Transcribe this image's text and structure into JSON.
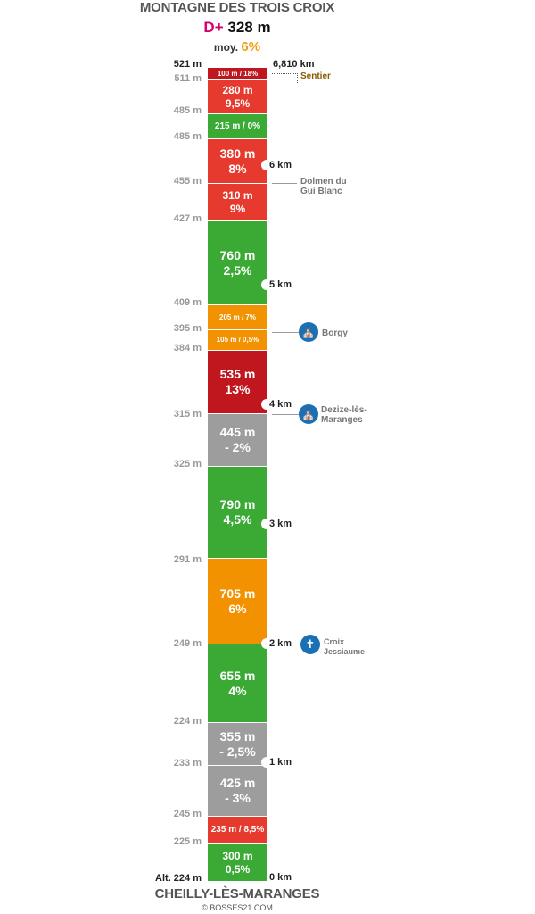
{
  "header": {
    "title": "MONTAGNE DES TROIS CROIX",
    "dplus_label": "D+",
    "dplus_value": "328 m",
    "avg_label": "moy.",
    "avg_value": "6%"
  },
  "footer": {
    "place": "CHEILLY-LÈS-MARANGES",
    "copyright": "© BOSSES21.COM"
  },
  "colors": {
    "dark_red": "#c0171e",
    "red": "#e63a2e",
    "green": "#3aaa35",
    "orange": "#f39200",
    "gray": "#9d9d9d"
  },
  "total_distance": "6,810 km",
  "top_altitude": "521 m",
  "start_altitude": "Alt. 224 m",
  "segments": [
    {
      "length": "100 m",
      "grade": "18%",
      "color": "dark_red",
      "inline": true
    },
    {
      "length": "280 m",
      "grade": "9,5%",
      "color": "red"
    },
    {
      "length": "215 m",
      "grade": "0%",
      "color": "green",
      "inline": true
    },
    {
      "length": "380 m",
      "grade": "8%",
      "color": "red"
    },
    {
      "length": "310 m",
      "grade": "9%",
      "color": "red"
    },
    {
      "length": "760 m",
      "grade": "2,5%",
      "color": "green"
    },
    {
      "length": "205 m",
      "grade": "7%",
      "color": "orange",
      "inline": true
    },
    {
      "length": "105 m",
      "grade": "0,5%",
      "color": "orange",
      "inline": true
    },
    {
      "length": "535 m",
      "grade": "13%",
      "color": "dark_red"
    },
    {
      "length": "445 m",
      "grade": "- 2%",
      "color": "gray"
    },
    {
      "length": "790 m",
      "grade": "4,5%",
      "color": "green"
    },
    {
      "length": "705 m",
      "grade": "6%",
      "color": "orange"
    },
    {
      "length": "655 m",
      "grade": "4%",
      "color": "green"
    },
    {
      "length": "355 m",
      "grade": "- 2,5%",
      "color": "gray"
    },
    {
      "length": "425 m",
      "grade": "- 3%",
      "color": "gray"
    },
    {
      "length": "235 m",
      "grade": "8,5%",
      "color": "red",
      "inline": true
    },
    {
      "length": "300 m",
      "grade": "0,5%",
      "color": "green"
    }
  ],
  "altitudes": [
    "511 m",
    "485 m",
    "485 m",
    "455 m",
    "427 m",
    "409 m",
    "395 m",
    "384 m",
    "315 m",
    "325 m",
    "291 m",
    "249 m",
    "224 m",
    "233 m",
    "245 m",
    "225 m"
  ],
  "km_markers": [
    "6 km",
    "5 km",
    "4 km",
    "3 km",
    "2 km",
    "1 km",
    "0 km"
  ],
  "pois": [
    {
      "label": "Sentier",
      "icon": "trail-marker"
    },
    {
      "label": "Dolmen du Gui Blanc",
      "icon": "none"
    },
    {
      "label": "Borgy",
      "icon": "church-icon"
    },
    {
      "label": "Dezize-lès-Maranges",
      "icon": "church-icon"
    },
    {
      "label": "Croix Jessiaume",
      "icon": "cross-icon"
    }
  ]
}
